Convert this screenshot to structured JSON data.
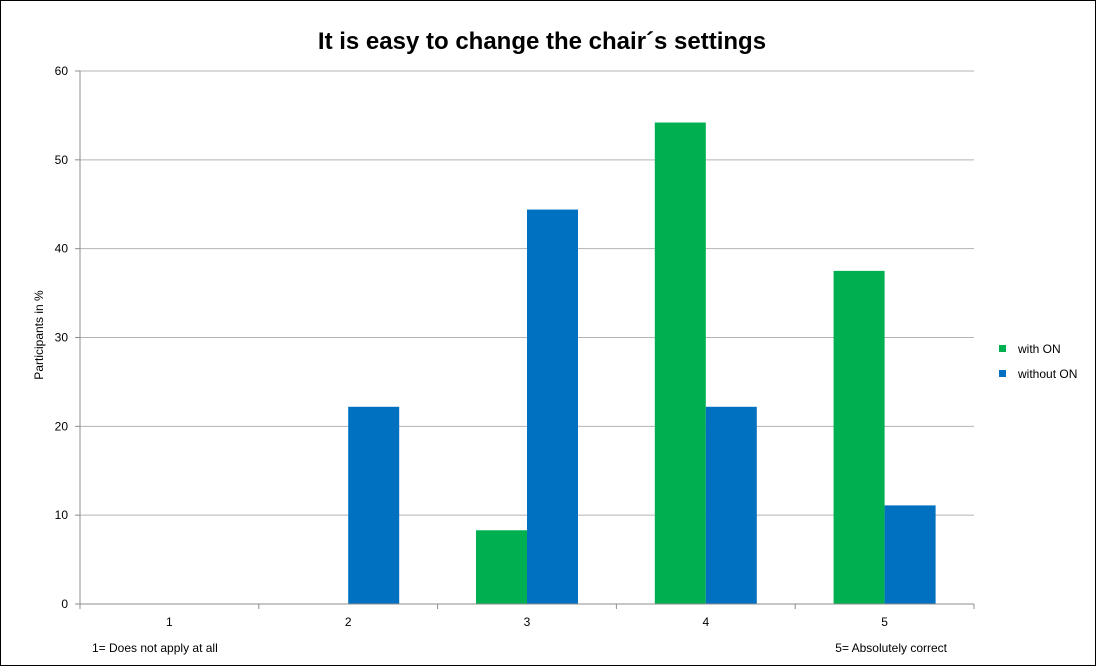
{
  "chart_data": {
    "type": "bar",
    "title": "It is easy to change the chair´s settings",
    "ylabel": "Participants in %",
    "xlabel": "",
    "categories": [
      "1",
      "2",
      "3",
      "4",
      "5"
    ],
    "ylim": [
      0,
      60
    ],
    "yticks": [
      0,
      10,
      20,
      30,
      40,
      50,
      60
    ],
    "grid": true,
    "legend_position": "right",
    "series": [
      {
        "name": "with ON",
        "color": "#00b050",
        "values": [
          0,
          0,
          8.3,
          54.2,
          37.5
        ]
      },
      {
        "name": "without ON",
        "color": "#0070c0",
        "values": [
          0,
          22.2,
          44.4,
          22.2,
          11.1
        ]
      }
    ],
    "annotations": {
      "low_end": "1= Does not apply at all",
      "high_end": "5= Absolutely correct"
    }
  }
}
